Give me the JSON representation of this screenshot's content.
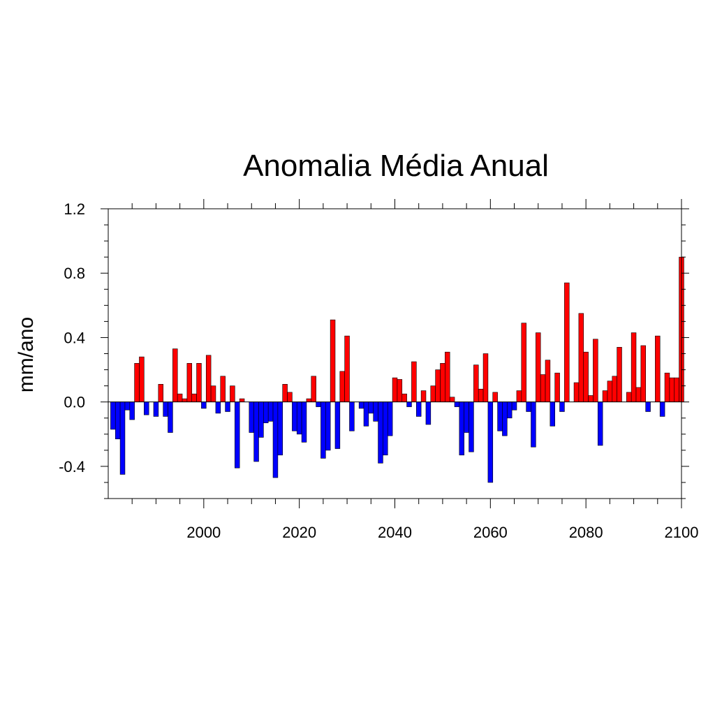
{
  "chart_data": {
    "type": "bar",
    "title": "Anomalia Média Anual",
    "xlabel": "",
    "ylabel": "mm/ano",
    "xlim": [
      1980,
      2100
    ],
    "ylim": [
      -0.6,
      1.2
    ],
    "x_tick_labels": [
      "2000",
      "2020",
      "2040",
      "2060",
      "2080",
      "2100"
    ],
    "y_tick_labels": [
      "-0.4",
      "0.0",
      "0.4",
      "0.8",
      "1.2"
    ],
    "grid": false,
    "legend": "none",
    "colors": {
      "positive": "#ff0000",
      "negative": "#0000ff",
      "outline": "#000000"
    },
    "years": [
      1981,
      1982,
      1983,
      1984,
      1985,
      1986,
      1987,
      1988,
      1989,
      1990,
      1991,
      1992,
      1993,
      1994,
      1995,
      1996,
      1997,
      1998,
      1999,
      2000,
      2001,
      2002,
      2003,
      2004,
      2005,
      2006,
      2007,
      2008,
      2009,
      2010,
      2011,
      2012,
      2013,
      2014,
      2015,
      2016,
      2017,
      2018,
      2019,
      2020,
      2021,
      2022,
      2023,
      2024,
      2025,
      2026,
      2027,
      2028,
      2029,
      2030,
      2031,
      2032,
      2033,
      2034,
      2035,
      2036,
      2037,
      2038,
      2039,
      2040,
      2041,
      2042,
      2043,
      2044,
      2045,
      2046,
      2047,
      2048,
      2049,
      2050,
      2051,
      2052,
      2053,
      2054,
      2055,
      2056,
      2057,
      2058,
      2059,
      2060,
      2061,
      2062,
      2063,
      2064,
      2065,
      2066,
      2067,
      2068,
      2069,
      2070,
      2071,
      2072,
      2073,
      2074,
      2075,
      2076,
      2077,
      2078,
      2079,
      2080,
      2081,
      2082,
      2083,
      2084,
      2085,
      2086,
      2087,
      2088,
      2089,
      2090,
      2091,
      2092,
      2093,
      2094,
      2095,
      2096,
      2097,
      2098,
      2099,
      2100
    ],
    "values": [
      -0.17,
      -0.23,
      -0.45,
      -0.05,
      -0.11,
      0.24,
      0.28,
      -0.08,
      0.0,
      -0.09,
      0.11,
      -0.09,
      -0.19,
      0.33,
      0.05,
      0.02,
      0.24,
      0.05,
      0.24,
      -0.04,
      0.29,
      0.1,
      -0.07,
      0.16,
      -0.06,
      0.1,
      -0.41,
      0.02,
      0.0,
      -0.19,
      -0.37,
      -0.22,
      -0.13,
      -0.12,
      -0.47,
      -0.33,
      0.11,
      0.06,
      -0.18,
      -0.2,
      -0.25,
      0.02,
      0.16,
      -0.03,
      -0.35,
      -0.3,
      0.51,
      -0.29,
      0.19,
      0.41,
      -0.18,
      0.0,
      -0.04,
      -0.15,
      -0.07,
      -0.12,
      -0.38,
      -0.33,
      -0.21,
      0.15,
      0.14,
      0.05,
      -0.03,
      0.25,
      -0.09,
      0.07,
      -0.14,
      0.1,
      0.2,
      0.24,
      0.31,
      0.03,
      -0.03,
      -0.33,
      -0.19,
      -0.31,
      0.23,
      0.08,
      0.3,
      -0.5,
      0.06,
      -0.18,
      -0.21,
      -0.1,
      -0.05,
      0.07,
      0.49,
      -0.06,
      -0.28,
      0.43,
      0.17,
      0.26,
      -0.15,
      0.18,
      -0.06,
      0.74,
      0.0,
      0.12,
      0.55,
      0.31,
      0.04,
      0.39,
      -0.27,
      0.07,
      0.13,
      0.16,
      0.34,
      0.0,
      0.06,
      0.43,
      0.09,
      0.35,
      -0.06,
      0.0,
      0.41,
      -0.09,
      0.18,
      0.15,
      0.15,
      0.9
    ]
  }
}
